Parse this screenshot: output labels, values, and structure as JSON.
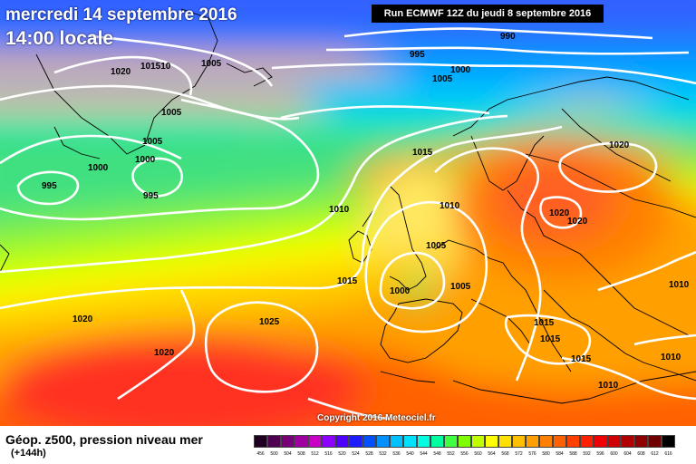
{
  "title_line1": "mercredi 14 septembre 2016",
  "title_line2": "14:00 locale",
  "run_info": "Run ECMWF 12Z du jeudi 8 septembre 2016",
  "copyright": "Copyright 2016 Meteociel.fr",
  "legend": {
    "title": "Géop. z500, pression niveau mer",
    "subtitle": "(+144h)",
    "scale_values": [
      "456",
      "500",
      "504",
      "508",
      "512",
      "516",
      "520",
      "524",
      "528",
      "532",
      "536",
      "540",
      "544",
      "548",
      "552",
      "556",
      "560",
      "564",
      "568",
      "572",
      "576",
      "580",
      "584",
      "588",
      "592",
      "596",
      "600",
      "604",
      "608",
      "612",
      "616"
    ],
    "scale_colors": [
      "#200020",
      "#500050",
      "#780078",
      "#a000a0",
      "#c800c8",
      "#8c00ff",
      "#5000ff",
      "#1c1cff",
      "#0050ff",
      "#0090ff",
      "#00c0ff",
      "#00e0ff",
      "#00ffe0",
      "#00ffa0",
      "#40ff40",
      "#80ff00",
      "#c0ff00",
      "#ffff00",
      "#ffe000",
      "#ffc000",
      "#ffa000",
      "#ff8000",
      "#ff6000",
      "#ff4000",
      "#ff2000",
      "#f00000",
      "#d00000",
      "#b00000",
      "#900000",
      "#700000",
      "#000000"
    ]
  },
  "isobar_labels": [
    {
      "text": "990"
    },
    {
      "text": "995"
    },
    {
      "text": "1000"
    },
    {
      "text": "1005"
    },
    {
      "text": "1020"
    },
    {
      "text": "101510"
    },
    {
      "text": "1005"
    },
    {
      "text": "1005"
    },
    {
      "text": "1005"
    },
    {
      "text": "1000"
    },
    {
      "text": "1000"
    },
    {
      "text": "995"
    },
    {
      "text": "995"
    },
    {
      "text": "1015"
    },
    {
      "text": "1010"
    },
    {
      "text": "1010"
    },
    {
      "text": "1005"
    },
    {
      "text": "1015"
    },
    {
      "text": "1000"
    },
    {
      "text": "1005"
    },
    {
      "text": "1020"
    },
    {
      "text": "1020"
    },
    {
      "text": "1020"
    },
    {
      "text": "1015"
    },
    {
      "text": "1015"
    },
    {
      "text": "1015"
    },
    {
      "text": "1010"
    },
    {
      "text": "1010"
    },
    {
      "text": "1010"
    },
    {
      "text": "1020"
    },
    {
      "text": "1025"
    },
    {
      "text": "1020"
    }
  ]
}
